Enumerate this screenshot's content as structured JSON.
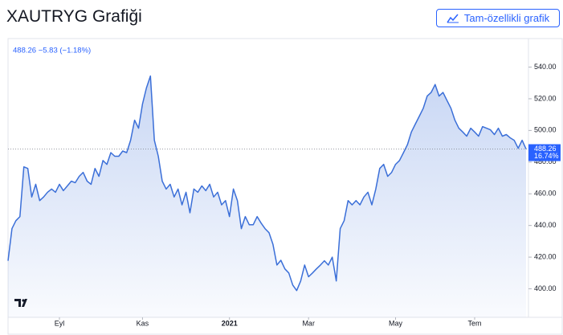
{
  "chart_data": {
    "type": "line",
    "title": "XAUTRYG Grafiği",
    "button": "Tam-özellikli grafik",
    "legend_text": "488.26 −5.83 (−1.18%)",
    "series": [
      {
        "name": "XAUTRYG",
        "color": "#3b6fd8",
        "values": [
          417.7,
          438,
          443,
          445.6,
          477,
          476,
          458,
          466,
          455.7,
          458,
          461,
          463,
          461,
          466,
          462,
          465,
          468,
          467,
          471,
          473.5,
          468,
          466,
          476,
          471,
          481,
          478.6,
          486,
          483.7,
          483.7,
          487,
          486,
          493.8,
          506.5,
          501.4,
          516.6,
          526.8,
          534.4,
          493.8,
          483.7,
          468,
          463,
          466,
          458,
          463,
          453,
          461,
          448,
          463,
          461,
          465,
          462,
          466,
          458,
          461,
          453,
          455.7,
          445.6,
          463,
          455.7,
          438,
          445.6,
          440.5,
          440.5,
          445.6,
          441.5,
          438,
          435.4,
          428,
          415,
          418,
          412.6,
          410,
          402.4,
          398.9,
          405,
          415,
          407.6,
          410,
          412.6,
          415,
          417.7,
          415,
          420,
          405,
          438,
          443,
          455.7,
          453,
          455.7,
          453,
          458,
          461,
          453,
          463,
          476,
          478.6,
          471,
          473.5,
          478.6,
          481,
          486,
          491,
          499,
          504,
          509,
          514,
          521.7,
          524,
          529,
          521.7,
          524,
          519,
          514,
          506.5,
          501.4,
          499,
          496.4,
          501.4,
          499,
          496.4,
          502.4,
          501.4,
          500.4,
          497.4,
          501.4,
          496.4,
          497.4,
          495.3,
          493.8,
          488.7,
          493.8,
          488.26
        ]
      }
    ],
    "xlim": [
      0,
      131
    ],
    "xticks": [
      {
        "value": 13,
        "label": "Eyl"
      },
      {
        "value": 34,
        "label": "Kas"
      },
      {
        "value": 56,
        "label": "2021"
      },
      {
        "value": 76,
        "label": "Mar"
      },
      {
        "value": 98,
        "label": "May"
      },
      {
        "value": 118,
        "label": "Tem"
      }
    ],
    "ylim": [
      382,
      557
    ],
    "yticks": [
      {
        "value": 400,
        "label": "400.00"
      },
      {
        "value": 420,
        "label": "420.00"
      },
      {
        "value": 440,
        "label": "440.00"
      },
      {
        "value": 460,
        "label": "460.00"
      },
      {
        "value": 480,
        "label": "480.00"
      },
      {
        "value": 500,
        "label": "500.00"
      },
      {
        "value": 520,
        "label": "520.00"
      },
      {
        "value": 540,
        "label": "540.00"
      }
    ],
    "last_value": {
      "value": 488.26,
      "label": "488.26"
    },
    "change_label": "16.74%"
  }
}
